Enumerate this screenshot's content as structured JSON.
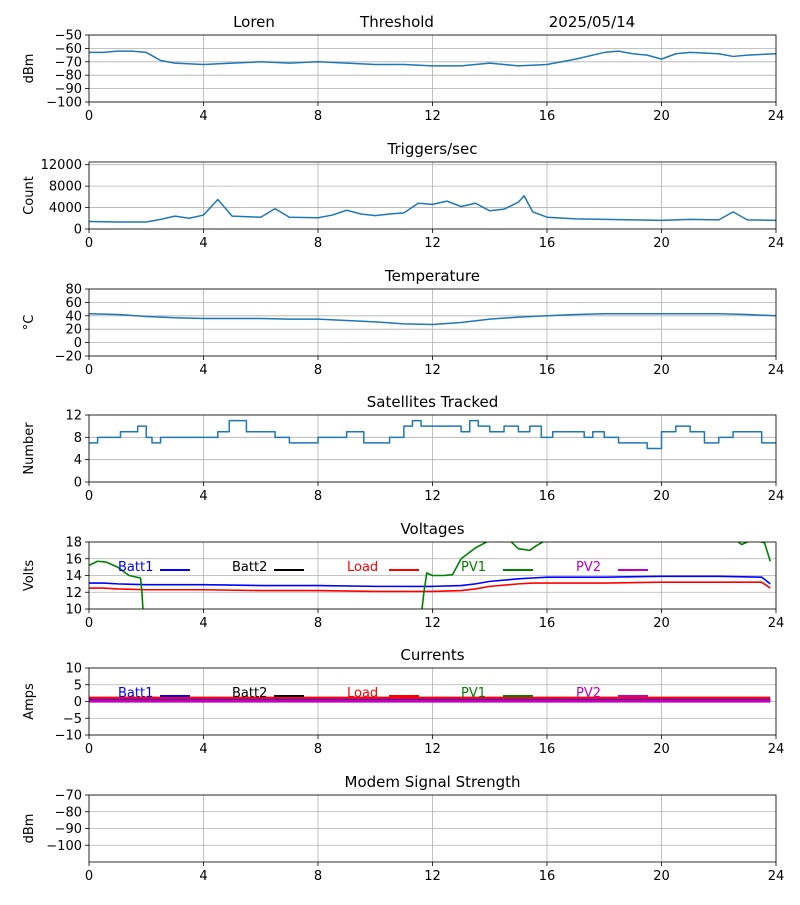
{
  "header": {
    "station": "Loren",
    "label": "Threshold",
    "date": "2025/05/14"
  },
  "chart_data": [
    {
      "type": "line",
      "title": "",
      "ylabel": "dBm",
      "xlim": [
        0,
        24
      ],
      "xticks": [
        "0",
        "4",
        "8",
        "12",
        "16",
        "20",
        "24"
      ],
      "ylim": [
        -100,
        -50
      ],
      "yticks": [
        "−100",
        "−90",
        "−80",
        "−70",
        "−60",
        "−50"
      ],
      "grid": true,
      "series": [
        {
          "color": "#1f77b4",
          "x": [
            0,
            0.5,
            1,
            1.5,
            2,
            2.5,
            3,
            4,
            5,
            6,
            7,
            8,
            9,
            10,
            11,
            12,
            13,
            14,
            15,
            16,
            17,
            18,
            18.5,
            19,
            19.5,
            20,
            20.5,
            21,
            22,
            22.5,
            23,
            24
          ],
          "y": [
            -63,
            -63,
            -62,
            -62,
            -63,
            -69,
            -71,
            -72,
            -71,
            -70,
            -71,
            -70,
            -71,
            -72,
            -72,
            -73,
            -73,
            -71,
            -73,
            -72,
            -68,
            -63,
            -62,
            -64,
            -65,
            -68,
            -64,
            -63,
            -64,
            -66,
            -65,
            -64
          ]
        }
      ]
    },
    {
      "type": "line",
      "title": "Triggers/sec",
      "ylabel": "Count",
      "xlim": [
        0,
        24
      ],
      "xticks": [
        "0",
        "4",
        "8",
        "12",
        "16",
        "20",
        "24"
      ],
      "ylim": [
        0,
        12500
      ],
      "yticks": [
        "0",
        "4000",
        "8000",
        "12000"
      ],
      "grid": true,
      "series": [
        {
          "color": "#1f77b4",
          "x": [
            0,
            1,
            2,
            2.5,
            3,
            3.5,
            4,
            4.5,
            5,
            6,
            6.5,
            7,
            8,
            8.5,
            9,
            9.5,
            10,
            10.5,
            11,
            11.5,
            12,
            12.5,
            13,
            13.5,
            14,
            14.5,
            15,
            15.2,
            15.5,
            16,
            17,
            18,
            19,
            20,
            21,
            22,
            22.5,
            23,
            24
          ],
          "y": [
            1400,
            1300,
            1300,
            1800,
            2400,
            2000,
            2600,
            5500,
            2400,
            2200,
            3800,
            2200,
            2100,
            2600,
            3500,
            2800,
            2500,
            2800,
            3000,
            4800,
            4600,
            5200,
            4200,
            4800,
            3400,
            3700,
            5000,
            6200,
            3200,
            2200,
            1900,
            1800,
            1700,
            1600,
            1800,
            1700,
            3200,
            1700,
            1600
          ]
        }
      ]
    },
    {
      "type": "line",
      "title": "Temperature",
      "ylabel": "°C",
      "xlim": [
        0,
        24
      ],
      "xticks": [
        "0",
        "4",
        "8",
        "12",
        "16",
        "20",
        "24"
      ],
      "ylim": [
        -20,
        80
      ],
      "yticks": [
        "−20",
        "0",
        "20",
        "40",
        "60",
        "80"
      ],
      "grid": true,
      "series": [
        {
          "color": "#1f77b4",
          "x": [
            0,
            1,
            2,
            3,
            4,
            5,
            6,
            7,
            8,
            9,
            10,
            11,
            12,
            13,
            14,
            15,
            16,
            17,
            18,
            19,
            20,
            21,
            22,
            23,
            24
          ],
          "y": [
            43,
            42,
            39,
            37,
            36,
            36,
            36,
            35,
            35,
            33,
            31,
            28,
            27,
            30,
            35,
            38,
            40,
            42,
            43,
            43,
            43,
            43,
            43,
            42,
            40
          ]
        }
      ]
    },
    {
      "type": "line",
      "title": "Satellites Tracked",
      "ylabel": "Number",
      "xlim": [
        0,
        24
      ],
      "xticks": [
        "0",
        "4",
        "8",
        "12",
        "16",
        "20",
        "24"
      ],
      "ylim": [
        0,
        12
      ],
      "yticks": [
        "0",
        "4",
        "8",
        "12"
      ],
      "grid": true,
      "series": [
        {
          "color": "#1f77b4",
          "step": true,
          "x": [
            0,
            0.3,
            0.6,
            1.1,
            1.7,
            2.0,
            2.2,
            2.5,
            3.5,
            4.5,
            4.9,
            5.5,
            6.0,
            6.5,
            7.0,
            7.5,
            8.0,
            8.5,
            9.0,
            9.6,
            10.0,
            10.5,
            11.0,
            11.3,
            11.6,
            12.0,
            12.5,
            13.0,
            13.3,
            13.6,
            14.0,
            14.5,
            15.0,
            15.4,
            15.8,
            16.2,
            16.8,
            17.3,
            17.6,
            18.0,
            18.5,
            19.0,
            19.5,
            20.0,
            20.5,
            21.0,
            21.5,
            22.0,
            22.5,
            23.0,
            23.5,
            24
          ],
          "y": [
            7,
            8,
            8,
            9,
            10,
            8,
            7,
            8,
            8,
            9,
            11,
            9,
            9,
            8,
            7,
            7,
            8,
            8,
            9,
            7,
            7,
            8,
            10,
            11,
            10,
            10,
            10,
            9,
            11,
            10,
            9,
            10,
            9,
            10,
            8,
            9,
            9,
            8,
            9,
            8,
            7,
            7,
            6,
            9,
            10,
            9,
            7,
            8,
            9,
            9,
            7,
            7
          ]
        }
      ]
    },
    {
      "type": "line",
      "title": "Voltages",
      "ylabel": "Volts",
      "xlim": [
        0,
        24
      ],
      "xticks": [
        "0",
        "4",
        "8",
        "12",
        "16",
        "20",
        "24"
      ],
      "ylim": [
        10,
        18
      ],
      "yticks": [
        "10",
        "12",
        "14",
        "16",
        "18"
      ],
      "grid": true,
      "legend": [
        "Batt1",
        "Batt2",
        "Load",
        "PV1",
        "PV2"
      ],
      "series": [
        {
          "name": "Batt1",
          "color": "#0000ff",
          "x": [
            0,
            0.5,
            1,
            2,
            4,
            6,
            8,
            10,
            12,
            13,
            13.5,
            14,
            15,
            15.5,
            16,
            18,
            20,
            22,
            23.5,
            23.8
          ],
          "y": [
            13.1,
            13.1,
            13.0,
            12.9,
            12.9,
            12.8,
            12.8,
            12.7,
            12.7,
            12.8,
            13.0,
            13.3,
            13.6,
            13.7,
            13.8,
            13.8,
            13.9,
            13.9,
            13.8,
            13.0
          ]
        },
        {
          "name": "Load",
          "color": "#ff0000",
          "x": [
            0,
            0.5,
            1,
            2,
            4,
            6,
            8,
            10,
            12,
            13,
            13.5,
            14,
            15,
            15.5,
            16,
            18,
            20,
            22,
            23.5,
            23.8
          ],
          "y": [
            12.5,
            12.5,
            12.4,
            12.3,
            12.3,
            12.2,
            12.2,
            12.1,
            12.1,
            12.2,
            12.4,
            12.7,
            13.0,
            13.1,
            13.1,
            13.1,
            13.2,
            13.2,
            13.2,
            12.5
          ]
        },
        {
          "name": "PV1",
          "color": "#008000",
          "x": [
            0,
            0.3,
            0.6,
            1,
            1.4,
            1.8,
            1.85,
            1.9
          ],
          "y": [
            15.2,
            15.7,
            15.6,
            15.0,
            14.0,
            13.7,
            12.0,
            9.0
          ]
        },
        {
          "name": "PV1",
          "color": "#008000",
          "x": [
            11.6,
            11.7,
            11.8,
            12.0,
            12.4,
            12.7,
            13.0,
            13.5,
            14.0,
            14.6,
            15.0,
            15.4,
            15.6,
            15.85,
            16.0
          ],
          "y": [
            9.0,
            12.0,
            14.3,
            14.0,
            14.0,
            14.1,
            16.0,
            17.3,
            18.2,
            18.5,
            17.2,
            17.0,
            17.5,
            18.0,
            18.5
          ]
        },
        {
          "name": "PV1",
          "color": "#008000",
          "x": [
            22.6,
            22.8,
            23.2,
            23.6,
            23.8
          ],
          "y": [
            18.2,
            17.7,
            18.3,
            17.9,
            15.7
          ]
        }
      ]
    },
    {
      "type": "line",
      "title": "Currents",
      "ylabel": "Amps",
      "xlim": [
        0,
        24
      ],
      "xticks": [
        "0",
        "4",
        "8",
        "12",
        "16",
        "20",
        "24"
      ],
      "ylim": [
        -10,
        10
      ],
      "yticks": [
        "−10",
        "−5",
        "0",
        "5",
        "10"
      ],
      "grid": true,
      "legend": [
        "Batt1",
        "Batt2",
        "Load",
        "PV1",
        "PV2"
      ],
      "series": [
        {
          "name": "Batt2",
          "color": "#000000",
          "x": [
            0,
            23.8
          ],
          "y": [
            0.5,
            0.5
          ]
        },
        {
          "name": "Load",
          "color": "#ff0000",
          "x": [
            0,
            23.8
          ],
          "y": [
            1.0,
            1.0
          ]
        },
        {
          "name": "Batt1",
          "color": "#0000ff",
          "x": [
            0,
            23.8
          ],
          "y": [
            0.3,
            0.3
          ]
        },
        {
          "name": "PV2",
          "color": "#bf00bf",
          "x": [
            0,
            23.8
          ],
          "y": [
            0.1,
            0.1
          ]
        }
      ]
    },
    {
      "type": "line",
      "title": "Modem Signal Strength",
      "ylabel": "dBm",
      "xlim": [
        0,
        24
      ],
      "xticks": [
        "0",
        "4",
        "8",
        "12",
        "16",
        "20",
        "24"
      ],
      "ylim": [
        -110,
        -70
      ],
      "yticks": [
        "−100",
        "−90",
        "−80",
        "−70"
      ],
      "grid": true,
      "series": []
    }
  ],
  "legend_colors": {
    "Batt1": "#0000ff",
    "Batt2": "#000000",
    "Load": "#ff0000",
    "PV1": "#008000",
    "PV2": "#bf00bf"
  }
}
